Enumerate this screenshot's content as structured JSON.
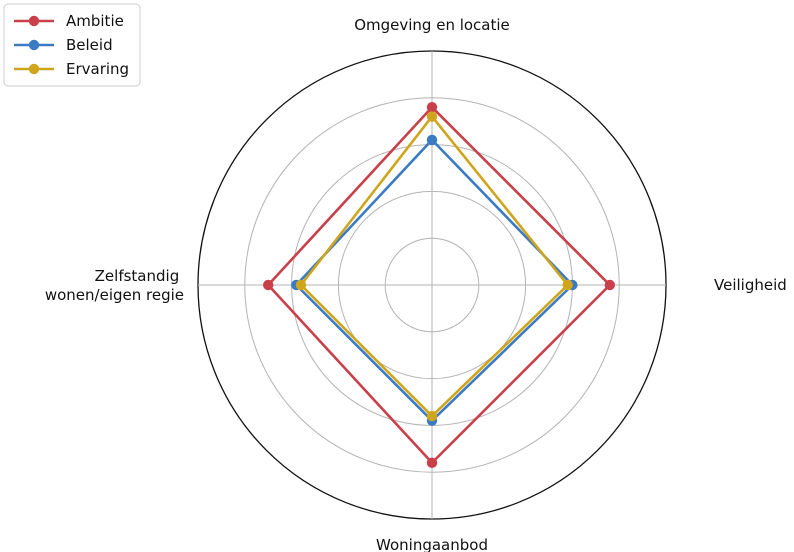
{
  "chart_data": {
    "type": "radar",
    "axes": [
      "Omgeving en locatie",
      "Veiligheid",
      "Woningaanbod",
      "Zelfstandig wonen/eigen regie"
    ],
    "rmax": 5,
    "ring_values": [
      1,
      2,
      3,
      4,
      5
    ],
    "grid": true,
    "legend_position": "top-left",
    "series": [
      {
        "name": "Ambitie",
        "color": "#c9404b",
        "values": [
          3.8,
          3.8,
          3.8,
          3.5
        ]
      },
      {
        "name": "Beleid",
        "color": "#3b7bc4",
        "values": [
          3.1,
          3.0,
          2.9,
          2.9
        ]
      },
      {
        "name": "Ervaring",
        "color": "#cfa51c",
        "values": [
          3.6,
          2.9,
          2.8,
          2.8
        ]
      }
    ]
  }
}
